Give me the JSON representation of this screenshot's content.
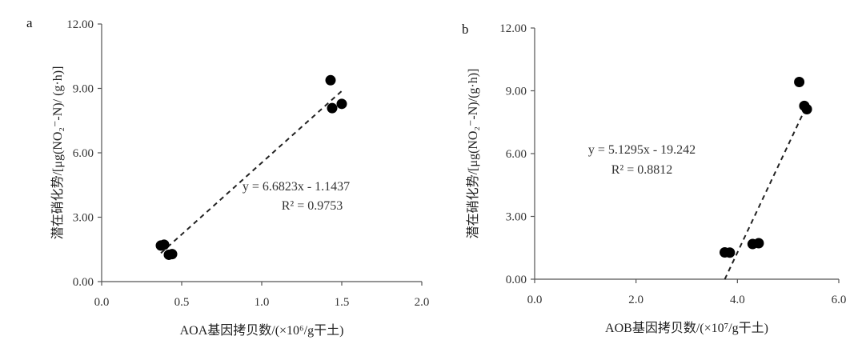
{
  "chart_data": [
    {
      "type": "scatter",
      "panel_label": "a",
      "title": "",
      "xlabel": "AOA基因拷贝数/(×10⁶/g干土)",
      "ylabel": "潜在硝化势/[μg(NO₂⁻-N)/ (g·h)]",
      "xlim": [
        0.0,
        2.0
      ],
      "ylim": [
        0.0,
        12.0
      ],
      "xticks": [
        "0.0",
        "0.5",
        "1.0",
        "1.5",
        "2.0"
      ],
      "yticks": [
        "0.00",
        "3.00",
        "6.00",
        "9.00",
        "12.00"
      ],
      "points": [
        {
          "x": 0.37,
          "y": 1.68
        },
        {
          "x": 0.39,
          "y": 1.72
        },
        {
          "x": 0.42,
          "y": 1.25
        },
        {
          "x": 0.44,
          "y": 1.28
        },
        {
          "x": 1.43,
          "y": 9.38
        },
        {
          "x": 1.44,
          "y": 8.08
        },
        {
          "x": 1.5,
          "y": 8.28
        }
      ],
      "trendline": {
        "slope": 6.6823,
        "intercept": -1.1437,
        "x_range": [
          0.37,
          1.5
        ]
      },
      "equation": "y = 6.6823x - 1.1437",
      "r_squared": "R² = 0.9753",
      "grid": false,
      "legend": "none"
    },
    {
      "type": "scatter",
      "panel_label": "b",
      "title": "",
      "xlabel": "AOB基因拷贝数/(×10⁷/g干土)",
      "ylabel": "潜在硝化势/[μg(NO₂⁻-N)/(g·h)]",
      "xlim": [
        0.0,
        6.0
      ],
      "ylim": [
        0.0,
        12.0
      ],
      "xticks": [
        "0.0",
        "2.0",
        "4.0",
        "6.0"
      ],
      "yticks": [
        "0.00",
        "3.00",
        "6.00",
        "9.00",
        "12.00"
      ],
      "points": [
        {
          "x": 3.75,
          "y": 1.28
        },
        {
          "x": 3.85,
          "y": 1.27
        },
        {
          "x": 4.3,
          "y": 1.68
        },
        {
          "x": 4.42,
          "y": 1.72
        },
        {
          "x": 5.22,
          "y": 9.42
        },
        {
          "x": 5.32,
          "y": 8.28
        },
        {
          "x": 5.37,
          "y": 8.12
        }
      ],
      "trendline": {
        "slope": 5.1295,
        "intercept": -19.242,
        "x_range": [
          3.75,
          5.37
        ]
      },
      "equation": "y = 5.1295x - 19.242",
      "r_squared": "R² = 0.8812",
      "grid": false,
      "legend": "none"
    }
  ]
}
